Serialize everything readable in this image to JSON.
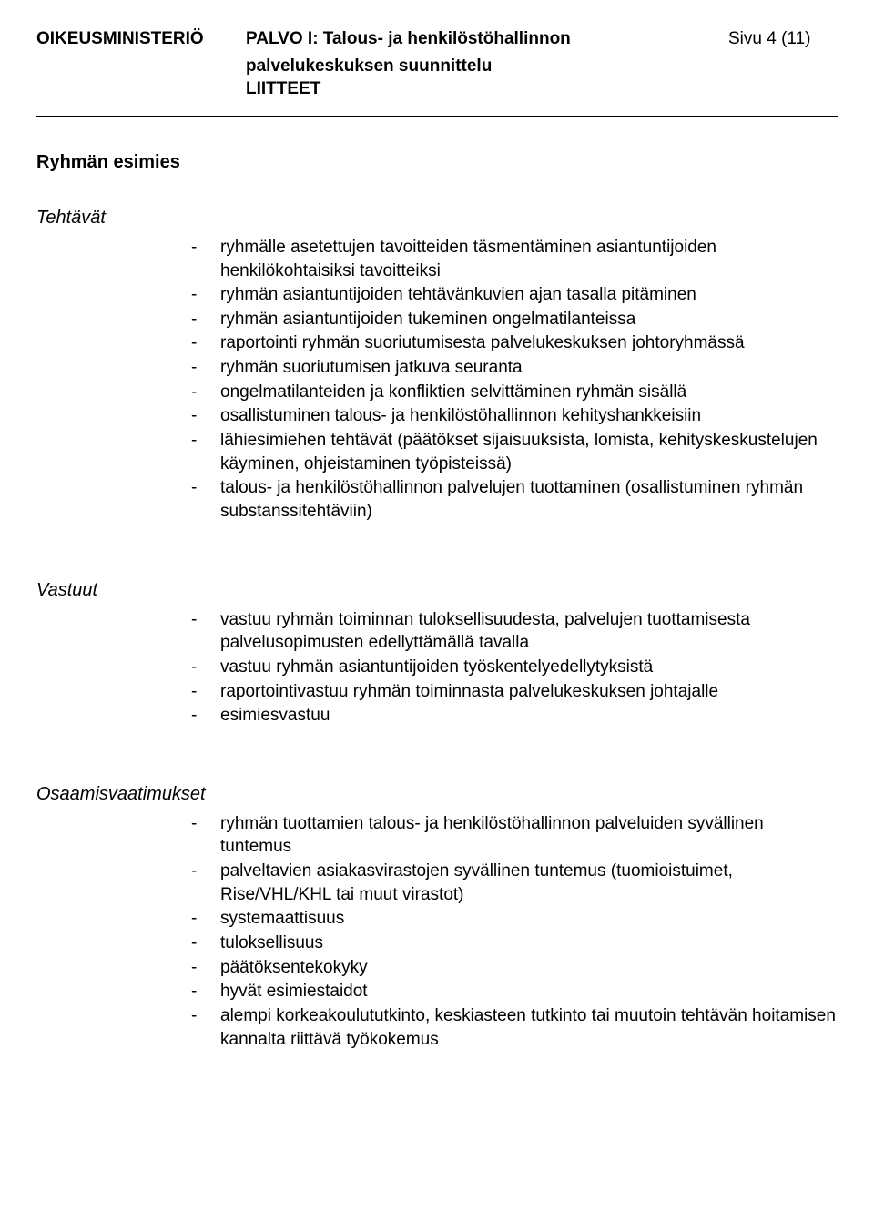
{
  "header": {
    "left": "OIKEUSMINISTERIÖ",
    "center_line1": "PALVO I: Talous- ja henkilöstöhallinnon",
    "center_line2": "palvelukeskuksen suunnittelu",
    "center_line3": "LIITTEET",
    "right": "Sivu 4 (11)"
  },
  "main_title": "Ryhmän esimies",
  "sections": [
    {
      "heading": "Tehtävät",
      "items": [
        "ryhmälle asetettujen tavoitteiden täsmentäminen asiantuntijoiden henkilökohtaisiksi tavoitteiksi",
        "ryhmän asiantuntijoiden tehtävänkuvien ajan tasalla pitäminen",
        "ryhmän asiantuntijoiden tukeminen ongelmatilanteissa",
        "raportointi ryhmän suoriutumisesta palvelukeskuksen johtoryhmässä",
        "ryhmän suoriutumisen jatkuva seuranta",
        "ongelmatilanteiden ja konfliktien selvittäminen ryhmän sisällä",
        "osallistuminen talous- ja henkilöstöhallinnon kehityshankkeisiin",
        "lähiesimiehen tehtävät (päätökset sijaisuuksista, lomista, kehityskeskustelujen käyminen, ohjeistaminen työpisteissä)",
        "talous- ja henkilöstöhallinnon palvelujen tuottaminen (osallistuminen ryhmän substanssitehtäviin)"
      ]
    },
    {
      "heading": "Vastuut",
      "items": [
        "vastuu ryhmän toiminnan tuloksellisuudesta, palvelujen tuottamisesta palvelusopimusten edellyttämällä tavalla",
        "vastuu ryhmän asiantuntijoiden työskentelyedellytyksistä",
        "raportointivastuu ryhmän toiminnasta palvelukeskuksen johtajalle",
        "esimiesvastuu"
      ]
    },
    {
      "heading": "Osaamisvaatimukset",
      "items": [
        "ryhmän tuottamien talous- ja henkilöstöhallinnon palveluiden syvällinen tuntemus",
        "palveltavien asiakasvirastojen syvällinen tuntemus (tuomioistuimet, Rise/VHL/KHL tai muut virastot)",
        "systemaattisuus",
        "tuloksellisuus",
        "päätöksentekokyky",
        "hyvät esimiestaidot",
        "alempi korkeakoulututkinto, keskiasteen tutkinto tai muutoin tehtävän hoitamisen kannalta riittävä työkokemus"
      ]
    }
  ]
}
